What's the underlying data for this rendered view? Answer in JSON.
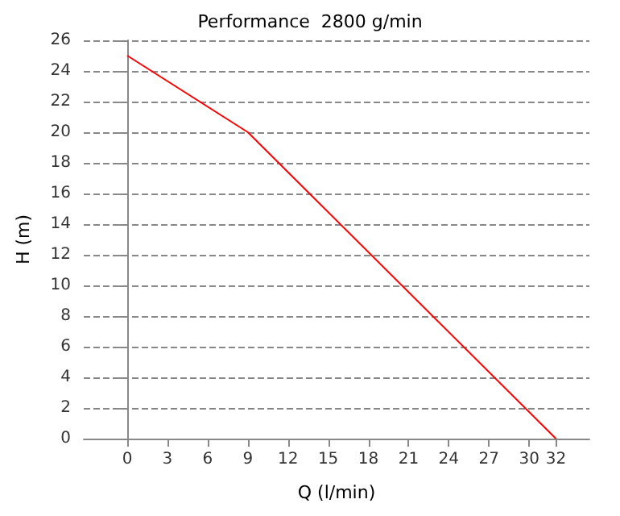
{
  "chart_data": {
    "type": "line",
    "title": "Performance  2800 g/min",
    "xlabel": "Q (l/min)",
    "ylabel": "H (m)",
    "x": [
      0,
      9,
      32
    ],
    "series": [
      {
        "color": "#ff0000",
        "values": [
          25,
          20,
          0
        ]
      }
    ],
    "xlim": [
      -3.25,
      34.5
    ],
    "xticks": [
      0,
      3,
      6,
      9,
      12,
      15,
      18,
      21,
      24,
      27,
      30,
      32
    ],
    "ylim": [
      0,
      26
    ],
    "yticks": [
      0,
      2,
      4,
      6,
      8,
      10,
      12,
      14,
      16,
      18,
      20,
      22,
      24,
      26
    ],
    "grid": "y",
    "line_style": "solid",
    "marker": "none"
  }
}
